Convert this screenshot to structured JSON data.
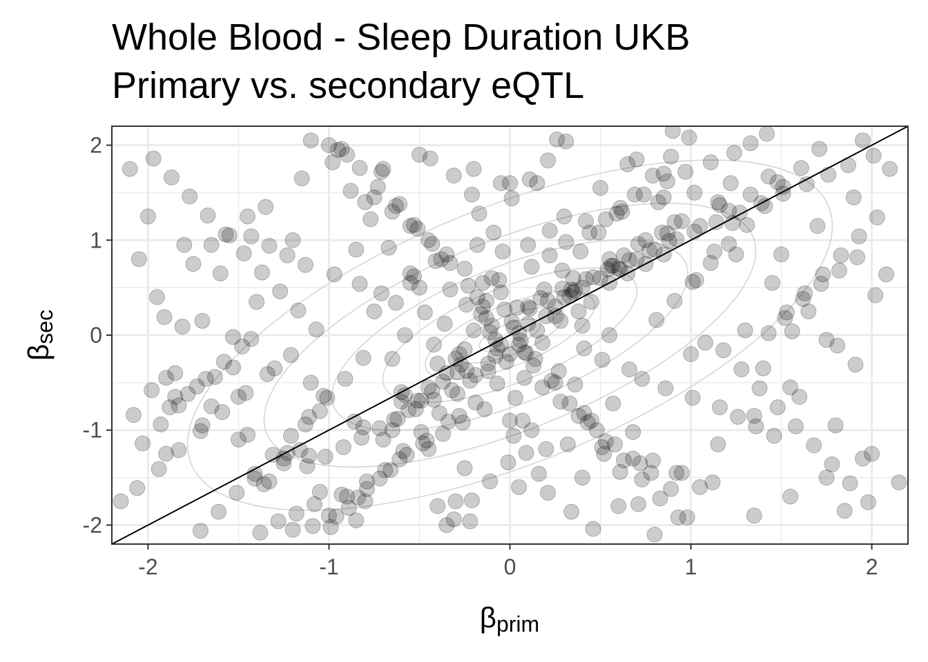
{
  "chart_data": {
    "type": "scatter",
    "title": [
      "Whole Blood - Sleep Duration UKB",
      "Primary vs. secondary eQTL"
    ],
    "xlabel": {
      "symbol": "β",
      "subscript": "prim"
    },
    "ylabel": {
      "symbol": "β",
      "subscript": "sec"
    },
    "xlim": [
      -2.2,
      2.2
    ],
    "ylim": [
      -2.2,
      2.2
    ],
    "xticks": [
      -2,
      -1,
      0,
      1,
      2
    ],
    "yticks": [
      -2,
      -1,
      0,
      1,
      2
    ],
    "xtick_labels": [
      "-2",
      "-1",
      "0",
      "1",
      "2"
    ],
    "ytick_labels": [
      "-2",
      "-1",
      "0",
      "1",
      "2"
    ],
    "grid": true,
    "reference_line": {
      "slope": 1,
      "intercept": 0,
      "color": "#000000"
    },
    "density_contours": true,
    "point_color": "#000000",
    "point_opacity": 0.2,
    "contour_color": "#d3d3d3",
    "series": [
      {
        "name": "",
        "x": [
          -0.16,
          -0.13,
          -0.2,
          -0.05,
          0.02,
          -0.3,
          0.1,
          -0.08,
          0.25,
          0.3,
          0.35,
          0.4,
          -0.4,
          -0.35,
          0.2,
          0.15,
          -0.25,
          0.05,
          -0.1,
          0.0,
          0.5,
          0.55,
          0.6,
          0.65,
          0.7,
          0.75,
          0.8,
          0.85,
          0.45,
          0.38,
          0.28,
          0.18,
          0.08,
          -0.02,
          -0.12,
          -0.22,
          -0.32,
          -0.42,
          -0.52,
          -0.62,
          -0.72,
          -0.82,
          -0.92,
          -1.02,
          -1.12,
          -0.5,
          -0.45,
          -0.55,
          -0.6,
          -0.38,
          -0.28,
          -0.18,
          0.12,
          0.22,
          0.32,
          0.42,
          0.52,
          0.62,
          0.72,
          0.82,
          0.92,
          1.02,
          1.12,
          1.22,
          -0.05,
          0.08,
          -0.15,
          0.18,
          -0.25,
          0.28,
          -0.35,
          0.38,
          -0.45,
          0.48,
          -0.55,
          0.58,
          -0.65,
          0.68,
          -0.75,
          0.78,
          0.1,
          -0.12,
          0.25,
          -0.28,
          0.4,
          -0.42,
          0.55,
          -0.58,
          0.0,
          0.05,
          -0.7,
          -0.8,
          -0.9,
          -1.0,
          -1.1,
          -1.2,
          -1.3,
          -1.4,
          -1.5,
          -1.6,
          -1.7,
          -1.8,
          -1.9,
          -2.0,
          -2.1,
          -2.15,
          -1.95,
          -1.85,
          -1.75,
          -1.65,
          -1.55,
          -1.45,
          -1.35,
          -1.25,
          -1.15,
          -1.05,
          -0.95,
          -0.85,
          -0.75,
          -0.65,
          -0.55,
          1.3,
          1.4,
          1.5,
          1.6,
          1.7,
          1.8,
          1.9,
          2.0,
          2.1,
          2.15,
          1.95,
          1.85,
          1.75,
          1.65,
          1.55,
          1.45,
          1.35,
          1.25,
          1.15,
          1.05,
          0.95,
          0.85,
          -0.3,
          -0.2,
          -0.1,
          0.0,
          0.1,
          0.2,
          0.3,
          0.4,
          0.5,
          0.6,
          0.7,
          0.8,
          0.9,
          1.0,
          -0.4,
          -0.5,
          -0.6,
          -0.7,
          -0.8,
          -0.9,
          -1.0,
          -1.1,
          -1.2,
          -0.35,
          -0.15,
          0.05,
          0.25,
          0.45,
          0.65,
          0.85,
          1.05,
          -0.25,
          -0.45,
          -0.65,
          -0.85,
          -1.05,
          0.15,
          0.35,
          0.55,
          0.75,
          0.95,
          1.15,
          1.35,
          1.55,
          1.75,
          1.95,
          -1.5,
          -1.7,
          -1.9,
          -2.05,
          -1.25,
          -1.45,
          -1.65,
          -1.85,
          -0.05,
          0.07,
          -0.18,
          0.14,
          -0.24,
          0.27,
          -0.33,
          0.36,
          -0.06,
          0.03,
          0.12,
          -0.14,
          0.22,
          -0.26,
          0.31,
          -0.37,
          0.44,
          -0.48,
          0.53,
          -0.57,
          0.61,
          -0.66,
          0.74,
          -0.79,
          0.87,
          -0.93,
          0.97,
          -1.08,
          1.11,
          -1.18,
          1.24,
          -1.28,
          1.33,
          -1.38,
          1.42,
          -1.48,
          1.52,
          -1.58,
          1.62,
          -1.68,
          1.72,
          -1.78,
          1.82,
          -1.88,
          1.92,
          -1.98,
          2.02,
          -2.08,
          2.08,
          0.02,
          -0.04,
          0.09,
          -0.09,
          0.16,
          -0.17,
          0.21,
          -0.21,
          0.34,
          -0.31,
          0.46,
          -0.44,
          0.57,
          -0.53,
          0.68,
          -0.67,
          0.79,
          -0.77,
          0.89,
          -0.88,
          0.98,
          -0.98,
          1.08,
          -1.07,
          1.18,
          -1.17,
          1.28,
          -1.27,
          1.38,
          -1.37,
          1.48,
          -1.47,
          1.58,
          -1.57,
          1.68,
          -1.67,
          1.78,
          -1.77,
          1.88,
          -1.87,
          1.98,
          -1.97,
          -0.22,
          0.26,
          -0.36,
          0.41,
          -0.47,
          0.51,
          -0.63,
          0.66,
          -0.71,
          0.73,
          -0.83,
          0.86,
          -0.97,
          1.01,
          -1.13,
          1.16,
          -1.23,
          1.26,
          -1.33,
          1.36,
          -1.43,
          1.46,
          -1.53,
          1.56,
          -0.08,
          0.11,
          -0.19,
          0.19,
          -0.29,
          0.29,
          -0.39,
          0.39,
          -0.49,
          0.49,
          -0.59,
          0.59,
          -0.69,
          0.69,
          -0.79,
          0.79,
          -0.89,
          0.89,
          -0.99,
          0.99,
          -0.13,
          0.13,
          -0.23,
          0.23,
          -0.33,
          0.33,
          -0.43,
          0.43,
          -0.53,
          0.53,
          -0.63,
          0.63,
          -0.73,
          0.73,
          -0.83,
          0.83,
          -0.93,
          0.93,
          -1.03,
          1.03,
          -1.13,
          1.13,
          -1.23,
          1.23,
          -1.33,
          1.33,
          -1.43,
          1.43,
          -1.53,
          1.53,
          -1.63,
          1.63,
          -1.73,
          1.73,
          -1.83,
          1.83,
          -1.93,
          1.93,
          -2.03,
          2.03,
          -0.01,
          0.01,
          -0.11,
          0.11,
          -0.21,
          0.21,
          -0.31,
          0.31,
          -0.41,
          0.41,
          -0.51,
          0.51,
          -0.61,
          0.61,
          -0.71,
          0.71,
          -0.81,
          0.81,
          -0.91,
          0.91,
          -1.01,
          1.01,
          -1.11,
          1.11,
          -1.21,
          1.21,
          -1.31,
          1.31,
          -1.41,
          1.41,
          -1.51,
          1.51,
          -1.61,
          1.61,
          -1.71,
          1.71,
          -1.81,
          1.81,
          -1.91,
          1.91,
          0.04,
          -0.07,
          0.17,
          -0.19,
          0.29,
          -0.34,
          0.42,
          -0.46,
          0.54,
          -0.61,
          0.66,
          -0.72,
          0.77,
          -0.84,
          0.88,
          -0.96,
          1.02,
          -1.09,
          1.14,
          -1.21,
          1.27,
          -1.34,
          1.39,
          -1.46,
          1.51,
          -1.59,
          1.64,
          -1.71,
          1.76,
          -1.83,
          1.87,
          -1.94,
          2.01,
          -2.06,
          -0.27,
          -0.24,
          0.33,
          0.36,
          -0.58,
          -0.51,
          0.61,
          0.56,
          -0.86,
          -0.81,
          0.92,
          0.87,
          -1.16,
          -1.11,
          1.21,
          1.16,
          -1.41,
          -1.36,
          1.48,
          1.43,
          0.01,
          0.06,
          -0.03,
          0.09,
          -0.11,
          0.21,
          -0.07,
          0.34,
          -0.29,
          0.46,
          -0.37,
          0.57,
          -0.43,
          0.63,
          -0.49,
          0.71,
          -0.56,
          0.84,
          -0.64,
          0.91
        ],
        "y": [
          0.22,
          0.18,
          0.05,
          -0.1,
          0.08,
          -0.25,
          0.12,
          -0.05,
          0.3,
          0.4,
          0.45,
          0.5,
          -0.3,
          -0.4,
          0.2,
          0.05,
          -0.15,
          0.02,
          0.1,
          -0.2,
          0.6,
          0.55,
          0.7,
          0.65,
          0.8,
          0.75,
          0.9,
          0.85,
          0.35,
          0.25,
          0.15,
          -0.08,
          -0.18,
          -0.28,
          -0.38,
          -0.48,
          -0.58,
          -0.68,
          -0.78,
          -0.88,
          -0.98,
          -1.08,
          -1.18,
          -1.28,
          -1.38,
          0.5,
          -0.55,
          0.65,
          -0.7,
          0.8,
          -0.85,
          0.95,
          -1.0,
          1.1,
          -1.15,
          1.2,
          -1.25,
          1.3,
          -1.35,
          1.4,
          -1.45,
          1.5,
          -1.55,
          1.6,
          0.45,
          -0.45,
          0.55,
          -0.55,
          0.7,
          -0.7,
          0.85,
          -0.85,
          1.0,
          -1.0,
          1.15,
          -1.15,
          1.3,
          -1.3,
          1.45,
          -1.45,
          0.3,
          -0.3,
          0.2,
          -0.2,
          0.1,
          -0.1,
          0.0,
          0.0,
          1.6,
          -1.6,
          1.75,
          -1.75,
          1.9,
          -1.9,
          2.05,
          -2.05,
          -0.35,
          0.35,
          -0.65,
          0.65,
          -0.95,
          0.95,
          -1.25,
          1.25,
          1.75,
          -1.75,
          0.4,
          -0.4,
          0.75,
          -0.75,
          1.05,
          -1.05,
          1.35,
          -1.35,
          1.65,
          -1.65,
          1.95,
          -1.95,
          0.25,
          -0.25,
          0.55,
          0.05,
          -0.35,
          0.85,
          -0.65,
          1.15,
          -0.95,
          1.45,
          -1.25,
          1.75,
          -1.55,
          2.05,
          -1.85,
          -0.05,
          0.25,
          -0.55,
          0.55,
          -0.85,
          0.85,
          -1.15,
          1.15,
          -1.45,
          1.45,
          -1.75,
          1.75,
          0.6,
          -0.9,
          0.95,
          -1.2,
          1.25,
          -1.5,
          1.55,
          -1.8,
          1.85,
          -2.1,
          2.15,
          -0.2,
          -1.8,
          1.9,
          -0.6,
          -1.1,
          1.4,
          -1.7,
          2.0,
          -0.5,
          1.0,
          -2.0,
          0.3,
          -0.1,
          -0.5,
          -0.9,
          1.8,
          1.7,
          -1.6,
          -1.4,
          -1.2,
          -1.0,
          0.9,
          -0.8,
          1.6,
          0.6,
          0.8,
          1.0,
          1.2,
          1.4,
          -1.9,
          -1.7,
          -1.5,
          -1.3,
          -1.1,
          0.15,
          -0.45,
          0.8,
          -1.3,
          1.25,
          0.95,
          -0.65,
          1.6,
          -0.9,
          0.4,
          -0.25,
          0.32,
          -0.38,
          0.48,
          -0.52,
          0.58,
          -0.66,
          0.72,
          -0.78,
          0.84,
          -0.92,
          0.98,
          -1.04,
          1.08,
          -1.14,
          1.22,
          -1.26,
          1.34,
          -1.42,
          1.48,
          -1.54,
          1.62,
          -1.68,
          1.72,
          -1.78,
          1.82,
          -1.88,
          1.92,
          -1.96,
          2.02,
          -2.08,
          2.12,
          -0.12,
          0.18,
          -0.28,
          0.38,
          -0.46,
          0.54,
          -0.62,
          0.68,
          -0.76,
          0.82,
          -0.58,
          0.42,
          -0.84,
          0.64,
          -1.06,
          0.88,
          -1.24,
          1.08,
          -1.46,
          1.28,
          -1.66,
          1.48,
          -1.86,
          1.68,
          -2.04,
          1.86,
          -0.72,
          0.62,
          -1.02,
          0.92,
          -1.32,
          1.22,
          -1.62,
          1.52,
          -1.92,
          1.82,
          -0.08,
          0.06,
          -0.16,
          0.26,
          -0.36,
          0.46,
          -0.56,
          0.66,
          -0.76,
          0.86,
          -0.96,
          1.06,
          -1.16,
          1.26,
          -1.36,
          1.46,
          -1.56,
          1.66,
          -1.76,
          1.86,
          -1.96,
          2.06,
          0.12,
          -0.14,
          0.24,
          -0.26,
          0.34,
          -0.36,
          0.44,
          -0.46,
          0.54,
          -0.56,
          0.64,
          -0.66,
          0.74,
          -0.76,
          0.84,
          -0.86,
          0.94,
          -0.96,
          1.04,
          -1.06,
          -0.02,
          0.04,
          -0.22,
          0.28,
          -0.42,
          0.48,
          -0.62,
          0.68,
          -0.82,
          0.88,
          -1.02,
          1.08,
          -1.22,
          1.28,
          -1.42,
          1.48,
          -1.62,
          1.68,
          -1.82,
          1.88,
          -2.02,
          2.08,
          0.36,
          -0.32,
          0.52,
          -0.48,
          0.76,
          -0.72,
          0.96,
          -0.92,
          1.16,
          -1.12,
          1.36,
          -1.32,
          1.56,
          -1.52,
          1.76,
          -1.72,
          1.96,
          -1.92,
          -0.64,
          0.58,
          -0.94,
          0.88,
          -1.24,
          1.18,
          -1.54,
          1.48,
          -0.04,
          0.02,
          -0.34,
          0.24,
          -0.44,
          0.44,
          -0.54,
          0.64,
          -0.74,
          0.84,
          -0.94,
          1.04,
          -1.14,
          1.24,
          -1.34,
          1.44,
          -1.54,
          1.64,
          -1.74,
          1.84,
          -1.94,
          2.04,
          0.78,
          -0.82,
          1.12,
          -1.18,
          1.38,
          -1.44,
          1.72,
          -1.78,
          -0.24,
          0.16,
          -0.46,
          0.36,
          -0.66,
          0.56,
          -0.86,
          0.76,
          -1.06,
          0.96,
          -1.26,
          1.16,
          -1.46,
          1.36,
          -1.66,
          1.56,
          -1.86,
          1.76,
          -2.06,
          1.96,
          0.09,
          -0.11,
          0.19,
          -0.31,
          0.29,
          -0.51,
          0.39,
          -0.71,
          0.49,
          -0.91,
          0.59,
          -1.11,
          0.69,
          -1.31,
          0.79,
          -1.51,
          0.89,
          -1.71,
          0.99,
          -1.91,
          1.09,
          -2.01,
          1.19,
          -0.21,
          1.29,
          -0.41,
          1.39,
          -0.61,
          1.49,
          -0.81,
          1.59,
          -1.01,
          1.69,
          -1.21,
          1.79,
          -1.41,
          1.89,
          -1.61,
          -0.31,
          -0.37,
          0.41,
          0.47,
          -0.63,
          -0.69,
          0.69,
          0.73,
          -0.91,
          -0.97,
          1.01,
          1.07,
          -1.21,
          -1.27,
          1.31,
          1.37,
          -1.51,
          -1.57,
          1.61,
          1.67,
          0.14,
          -0.06,
          0.27,
          -0.19,
          0.03,
          0.36,
          -0.14,
          0.48,
          -0.39,
          0.61,
          -0.49,
          0.73,
          -0.59,
          0.84,
          -0.69,
          0.96,
          -0.79,
          1.08,
          -0.89,
          1.19
        ]
      }
    ]
  }
}
